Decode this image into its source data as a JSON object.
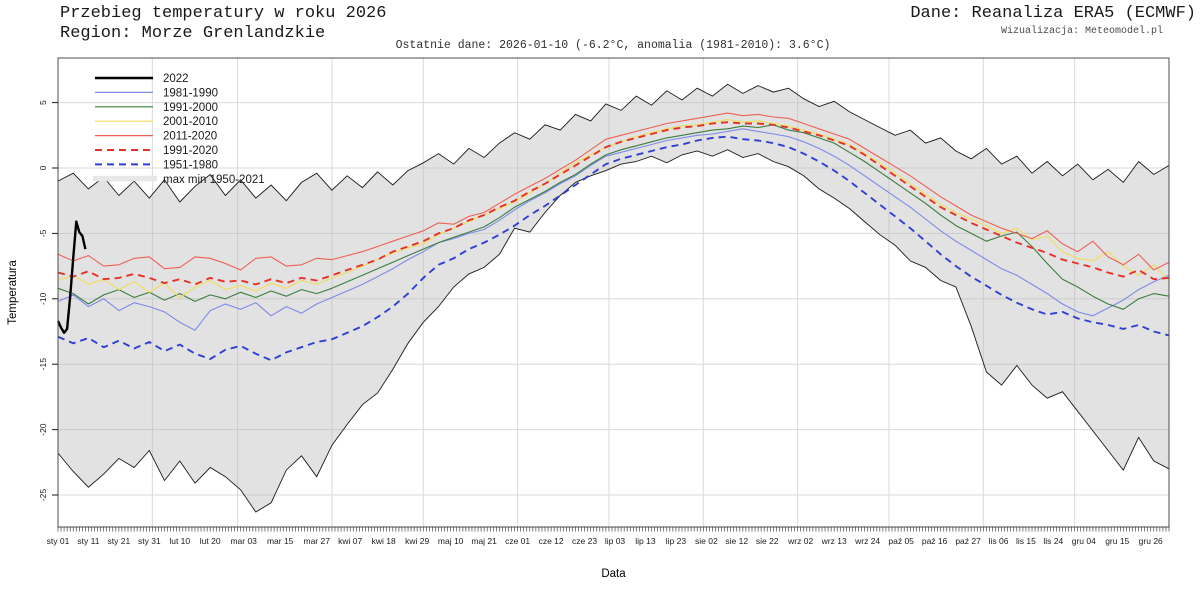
{
  "header": {
    "title_line1": "Przebieg temperatury w roku 2026",
    "title_line2": "Region: Morze Grenlandzkie",
    "subtitle": "Ostatnie dane: 2026-01-10 (-6.2°C, anomalia (1981-2010): 3.6°C)",
    "source": "Dane: Reanaliza ERA5 (ECMWF)",
    "credit": "Wizualizacja: Meteomodel.pl"
  },
  "chart_data": {
    "type": "line",
    "title": "Przebieg temperatury w roku 2026",
    "subtitle": "Region: Morze Grenlandzkie",
    "note": "Ostatnie dane: 2026-01-10 (-6.2°C, anomalia (1981-2010): 3.6°C)",
    "xlabel": "Data",
    "ylabel": "Temperatura",
    "ylim": [
      -27.4,
      8.4
    ],
    "yticks": [
      5,
      0,
      -5,
      -10,
      -15,
      -20,
      -25
    ],
    "grid": true,
    "legend_position": "top-left",
    "grid_month_start_days": [
      32,
      60,
      91,
      121,
      152,
      182,
      213,
      244,
      274,
      305,
      335
    ],
    "xticks": [
      [
        1,
        "sty 01"
      ],
      [
        11,
        "sty 11"
      ],
      [
        21,
        "sty 21"
      ],
      [
        31,
        "sty 31"
      ],
      [
        41,
        "lut 10"
      ],
      [
        51,
        "lut 20"
      ],
      [
        62,
        "mar 03"
      ],
      [
        74,
        "mar 15"
      ],
      [
        86,
        "mar 27"
      ],
      [
        97,
        "kwi 07"
      ],
      [
        108,
        "kwi 18"
      ],
      [
        119,
        "kwi 29"
      ],
      [
        130,
        "maj 10"
      ],
      [
        141,
        "maj 21"
      ],
      [
        152,
        "cze 01"
      ],
      [
        163,
        "cze 12"
      ],
      [
        174,
        "cze 23"
      ],
      [
        184,
        "lip 03"
      ],
      [
        194,
        "lip 13"
      ],
      [
        204,
        "lip 23"
      ],
      [
        214,
        "sie 02"
      ],
      [
        224,
        "sie 12"
      ],
      [
        234,
        "sie 22"
      ],
      [
        245,
        "wrz 02"
      ],
      [
        256,
        "wrz 13"
      ],
      [
        267,
        "wrz 24"
      ],
      [
        278,
        "paź 05"
      ],
      [
        289,
        "paź 16"
      ],
      [
        300,
        "paź 27"
      ],
      [
        310,
        "lis 06"
      ],
      [
        319,
        "lis 15"
      ],
      [
        328,
        "lis 24"
      ],
      [
        338,
        "gru 04"
      ],
      [
        349,
        "gru 15"
      ],
      [
        360,
        "gru 26"
      ]
    ],
    "band": {
      "name": "max min 1950-2021",
      "fill": "#bbbbbb",
      "fill_opacity": 0.42,
      "outline": "#1a1a1a",
      "legend_swatch": "#e7e7e7",
      "day_step": 5,
      "max": [
        -1.0,
        -0.4,
        -1.6,
        -0.7,
        -2.1,
        -1.0,
        -2.3,
        -0.9,
        -2.6,
        -1.4,
        -0.5,
        -2.1,
        -0.9,
        -2.3,
        -1.3,
        -2.5,
        -1.1,
        -0.4,
        -1.7,
        -0.6,
        -1.5,
        -0.3,
        -1.3,
        -0.2,
        0.4,
        1.1,
        0.3,
        1.5,
        0.8,
        1.9,
        2.7,
        2.2,
        3.3,
        2.9,
        4.1,
        3.6,
        4.9,
        4.4,
        5.5,
        4.8,
        5.9,
        5.2,
        6.1,
        5.5,
        6.4,
        5.7,
        6.3,
        5.8,
        6.1,
        5.3,
        4.7,
        5.1,
        4.3,
        3.7,
        3.1,
        2.5,
        2.9,
        1.9,
        2.3,
        1.3,
        0.7,
        1.5,
        0.3,
        0.9,
        -0.4,
        0.5,
        -0.6,
        0.3,
        -0.9,
        -0.1,
        -1.1,
        0.5,
        -0.5,
        0.2
      ],
      "min": [
        -21.8,
        -23.2,
        -24.4,
        -23.4,
        -22.2,
        -22.9,
        -21.6,
        -23.9,
        -22.4,
        -24.1,
        -22.9,
        -23.6,
        -24.6,
        -26.3,
        -25.6,
        -23.1,
        -22.0,
        -23.6,
        -21.2,
        -19.6,
        -18.1,
        -17.2,
        -15.4,
        -13.4,
        -11.8,
        -10.6,
        -9.1,
        -8.1,
        -7.6,
        -6.6,
        -4.6,
        -4.9,
        -3.4,
        -2.1,
        -1.1,
        -0.6,
        -0.2,
        0.3,
        0.5,
        0.9,
        0.4,
        1.0,
        1.3,
        0.9,
        1.4,
        0.8,
        1.1,
        0.5,
        0.1,
        -0.6,
        -1.6,
        -2.3,
        -3.1,
        -4.1,
        -5.1,
        -5.9,
        -7.1,
        -7.6,
        -8.6,
        -9.1,
        -12.1,
        -15.6,
        -16.6,
        -15.1,
        -16.6,
        -17.6,
        -17.1,
        -18.6,
        -20.1,
        -21.6,
        -23.1,
        -20.6,
        -22.4,
        -23.0
      ]
    },
    "series": [
      {
        "name": "1981-1990",
        "color": "#7e8ae8",
        "width": 1.1,
        "dash": null,
        "day_step": 5,
        "values": [
          -10.2,
          -9.7,
          -10.6,
          -10.0,
          -10.9,
          -10.3,
          -10.6,
          -11.0,
          -11.8,
          -12.4,
          -10.9,
          -10.4,
          -10.8,
          -10.3,
          -11.3,
          -10.6,
          -11.1,
          -10.4,
          -9.9,
          -9.4,
          -8.9,
          -8.3,
          -7.7,
          -7.0,
          -6.4,
          -5.7,
          -5.4,
          -5.0,
          -4.7,
          -4.0,
          -3.2,
          -2.5,
          -1.9,
          -1.2,
          -0.6,
          0.2,
          0.9,
          1.2,
          1.5,
          1.8,
          2.1,
          2.3,
          2.5,
          2.6,
          2.8,
          3.0,
          2.8,
          2.6,
          2.4,
          2.0,
          1.5,
          0.9,
          0.2,
          -0.6,
          -1.4,
          -2.2,
          -3.0,
          -3.9,
          -4.8,
          -5.6,
          -6.3,
          -7.0,
          -7.7,
          -8.2,
          -8.9,
          -9.6,
          -10.4,
          -11.0,
          -11.3,
          -10.7,
          -10.1,
          -9.3,
          -8.7,
          -8.2
        ]
      },
      {
        "name": "1991-2000",
        "color": "#3b7d41",
        "width": 1.1,
        "dash": null,
        "day_step": 5,
        "values": [
          -9.2,
          -9.6,
          -10.4,
          -9.7,
          -9.3,
          -9.9,
          -9.5,
          -10.1,
          -9.6,
          -10.2,
          -9.7,
          -10.0,
          -9.5,
          -9.9,
          -9.4,
          -9.8,
          -9.3,
          -9.6,
          -9.2,
          -8.7,
          -8.2,
          -7.7,
          -7.2,
          -6.7,
          -6.2,
          -5.7,
          -5.3,
          -4.9,
          -4.5,
          -3.8,
          -3.0,
          -2.4,
          -1.8,
          -1.1,
          -0.5,
          0.3,
          1.0,
          1.4,
          1.7,
          2.0,
          2.3,
          2.5,
          2.7,
          2.9,
          3.0,
          3.2,
          3.1,
          3.3,
          2.9,
          2.7,
          2.3,
          1.9,
          1.2,
          0.5,
          -0.3,
          -1.1,
          -1.9,
          -2.7,
          -3.6,
          -4.4,
          -5.0,
          -5.6,
          -5.2,
          -4.9,
          -6.0,
          -7.3,
          -8.5,
          -9.1,
          -9.8,
          -10.4,
          -10.8,
          -10.0,
          -9.6,
          -9.8
        ]
      },
      {
        "name": "2001-2010",
        "color": "#f2de58",
        "width": 1.1,
        "dash": null,
        "day_step": 5,
        "values": [
          -8.6,
          -8.2,
          -8.9,
          -8.5,
          -9.3,
          -8.7,
          -9.5,
          -8.8,
          -9.9,
          -9.1,
          -8.6,
          -9.3,
          -9.0,
          -9.4,
          -8.8,
          -9.2,
          -8.6,
          -8.9,
          -8.4,
          -8.0,
          -7.5,
          -7.0,
          -6.5,
          -6.1,
          -5.8,
          -5.1,
          -4.6,
          -4.1,
          -3.6,
          -3.1,
          -2.6,
          -1.9,
          -1.2,
          -0.4,
          0.4,
          1.0,
          1.6,
          2.0,
          2.4,
          2.7,
          3.0,
          3.2,
          3.3,
          3.5,
          3.7,
          3.5,
          3.6,
          3.4,
          3.2,
          2.9,
          2.6,
          2.2,
          1.8,
          1.1,
          0.4,
          -0.4,
          -1.2,
          -2.0,
          -2.8,
          -3.4,
          -3.9,
          -4.4,
          -5.0,
          -4.6,
          -5.5,
          -5.2,
          -6.4,
          -6.9,
          -7.1,
          -6.4,
          -7.5,
          -8.2,
          -7.4,
          -8.6
        ]
      },
      {
        "name": "2011-2020",
        "color": "#ee6055",
        "width": 1.1,
        "dash": null,
        "day_step": 5,
        "values": [
          -6.6,
          -7.1,
          -6.7,
          -7.5,
          -7.4,
          -6.9,
          -6.8,
          -7.7,
          -7.6,
          -6.8,
          -6.9,
          -7.3,
          -7.8,
          -6.9,
          -6.8,
          -7.5,
          -7.4,
          -6.9,
          -7.0,
          -6.7,
          -6.4,
          -6.0,
          -5.6,
          -5.2,
          -4.8,
          -4.2,
          -4.3,
          -3.7,
          -3.4,
          -2.7,
          -2.0,
          -1.4,
          -0.8,
          -0.1,
          0.6,
          1.4,
          2.2,
          2.5,
          2.8,
          3.1,
          3.4,
          3.6,
          3.8,
          4.0,
          4.2,
          4.0,
          4.1,
          3.9,
          3.8,
          3.4,
          3.0,
          2.6,
          2.2,
          1.5,
          0.8,
          0.1,
          -0.6,
          -1.4,
          -2.2,
          -2.9,
          -3.6,
          -4.1,
          -4.6,
          -5.0,
          -5.4,
          -4.8,
          -5.8,
          -6.4,
          -5.6,
          -6.8,
          -7.4,
          -6.6,
          -7.8,
          -7.2
        ]
      },
      {
        "name": "1991-2020",
        "color": "#e63129",
        "width": 1.9,
        "dash": "7 5",
        "day_step": 5,
        "values": [
          -8.0,
          -8.3,
          -7.9,
          -8.5,
          -8.4,
          -8.1,
          -8.4,
          -8.8,
          -8.5,
          -8.9,
          -8.4,
          -8.7,
          -8.6,
          -8.9,
          -8.5,
          -8.8,
          -8.4,
          -8.6,
          -8.2,
          -7.8,
          -7.4,
          -7.0,
          -6.4,
          -6.0,
          -5.6,
          -5.0,
          -4.6,
          -4.0,
          -3.6,
          -3.0,
          -2.5,
          -1.8,
          -1.2,
          -0.5,
          0.2,
          0.9,
          1.6,
          2.0,
          2.3,
          2.6,
          2.9,
          3.1,
          3.2,
          3.4,
          3.5,
          3.4,
          3.4,
          3.3,
          3.1,
          2.8,
          2.5,
          2.1,
          1.7,
          1.0,
          0.2,
          -0.6,
          -1.4,
          -2.2,
          -3.0,
          -3.6,
          -4.2,
          -4.7,
          -5.2,
          -5.7,
          -6.1,
          -6.5,
          -7.0,
          -7.3,
          -7.6,
          -8.0,
          -8.3,
          -7.8,
          -8.5,
          -8.4
        ]
      },
      {
        "name": "1951-1980",
        "color": "#2f3fd3",
        "width": 1.9,
        "dash": "7 5",
        "day_step": 5,
        "values": [
          -12.9,
          -13.4,
          -13.0,
          -13.7,
          -13.2,
          -13.8,
          -13.3,
          -14.0,
          -13.5,
          -14.2,
          -14.6,
          -13.9,
          -13.6,
          -14.2,
          -14.7,
          -14.1,
          -13.7,
          -13.3,
          -13.1,
          -12.6,
          -12.1,
          -11.4,
          -10.6,
          -9.6,
          -8.4,
          -7.4,
          -6.9,
          -6.2,
          -5.7,
          -5.1,
          -4.4,
          -3.6,
          -2.9,
          -2.1,
          -1.3,
          -0.5,
          0.3,
          0.7,
          1.0,
          1.3,
          1.6,
          1.8,
          2.1,
          2.3,
          2.4,
          2.2,
          2.1,
          1.9,
          1.6,
          1.1,
          0.5,
          -0.2,
          -1.0,
          -1.9,
          -2.8,
          -3.7,
          -4.6,
          -5.6,
          -6.6,
          -7.5,
          -8.3,
          -9.0,
          -9.7,
          -10.3,
          -10.8,
          -11.2,
          -11.0,
          -11.5,
          -11.8,
          -12.0,
          -12.3,
          -12.0,
          -12.5,
          -12.8
        ]
      },
      {
        "name": "2022",
        "color": "#000000",
        "width": 2.4,
        "dash": null,
        "days": [
          1,
          2,
          3,
          4,
          5,
          6,
          7,
          8,
          9,
          10
        ],
        "values": [
          -11.7,
          -12.2,
          -12.6,
          -12.3,
          -9.8,
          -6.9,
          -4.1,
          -4.9,
          -5.2,
          -6.2
        ]
      }
    ],
    "legend_order": [
      "2022",
      "1981-1990",
      "1991-2000",
      "2001-2010",
      "2011-2020",
      "1991-2020",
      "1951-1980"
    ]
  }
}
